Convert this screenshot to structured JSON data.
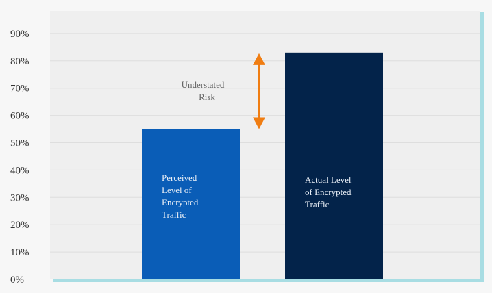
{
  "chart_data": {
    "type": "bar",
    "categories": [
      "Perceived Level of Encrypted Traffic",
      "Actual Level of Encrypted Traffic"
    ],
    "values": [
      55,
      83
    ],
    "bar_label_lines": [
      [
        "Perceived",
        "Level of",
        "Encrypted",
        "Traffic"
      ],
      [
        "Actual Level",
        "of Encrypted",
        "Traffic"
      ]
    ],
    "bar_colors": [
      "#0a5db7",
      "#03234a"
    ],
    "y_ticks": [
      "0%",
      "10%",
      "20%",
      "30%",
      "40%",
      "50%",
      "60%",
      "70%",
      "80%",
      "90%"
    ],
    "ylim": [
      0,
      100
    ],
    "grid": true,
    "annotation": {
      "lines": [
        "Understated",
        "Risk"
      ],
      "from": 55,
      "to": 83,
      "color": "#f07d12"
    },
    "colors": {
      "plot_bg": "#efefef",
      "gridline": "#dedede",
      "axis_line": "#a8dde3",
      "tick_text": "#333333",
      "bar_text": "#e8eef6",
      "annotation_text": "#666666"
    }
  }
}
